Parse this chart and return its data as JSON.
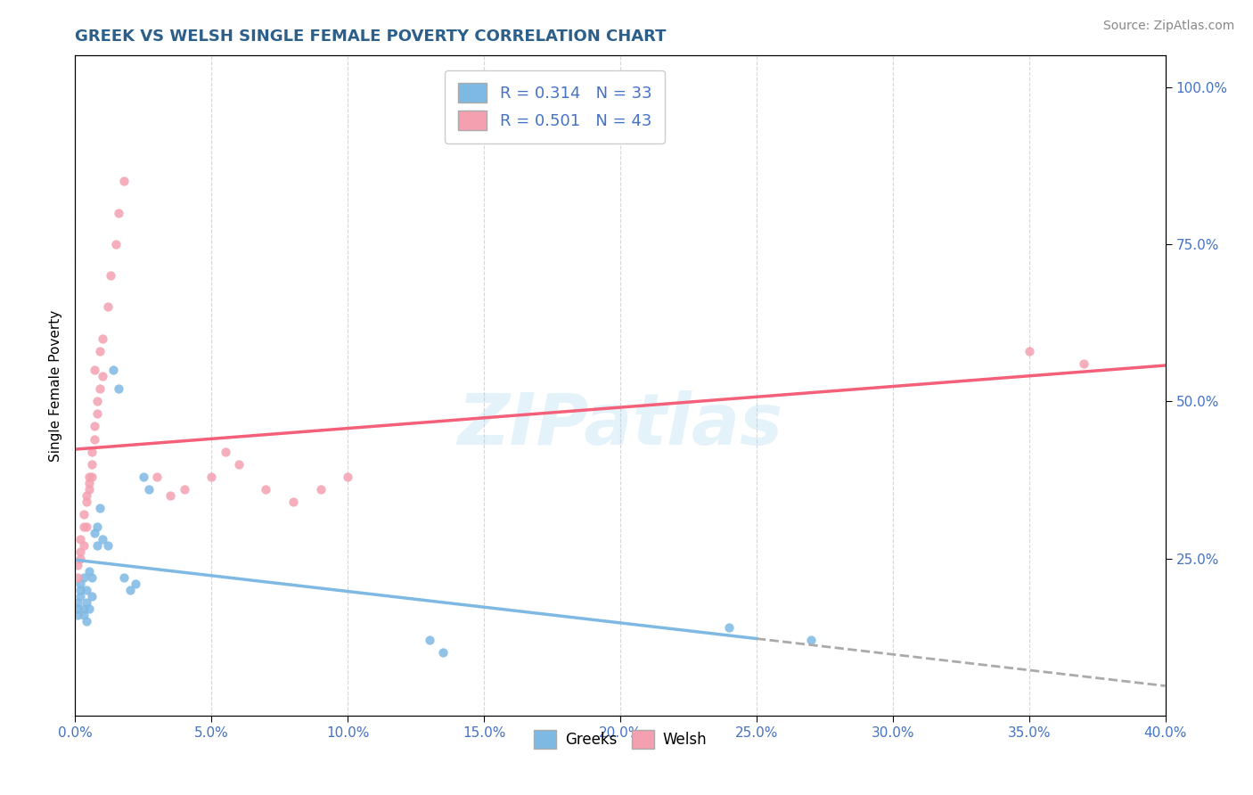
{
  "title": "GREEK VS WELSH SINGLE FEMALE POVERTY CORRELATION CHART",
  "source": "Source: ZipAtlas.com",
  "ylabel": "Single Female Poverty",
  "watermark": "ZIPatlas",
  "greek_color": "#7eb9e4",
  "welsh_color": "#f4a0b0",
  "greek_line_color": "#7eb9e4",
  "welsh_line_color": "#f4607a",
  "dashed_line_color": "#aaaaaa",
  "R_greek": 0.314,
  "N_greek": 33,
  "R_welsh": 0.501,
  "N_welsh": 43,
  "greek_scatter": [
    [
      0.001,
      0.17
    ],
    [
      0.001,
      0.16
    ],
    [
      0.001,
      0.18
    ],
    [
      0.002,
      0.2
    ],
    [
      0.002,
      0.19
    ],
    [
      0.002,
      0.21
    ],
    [
      0.003,
      0.17
    ],
    [
      0.003,
      0.16
    ],
    [
      0.003,
      0.22
    ],
    [
      0.004,
      0.18
    ],
    [
      0.004,
      0.2
    ],
    [
      0.004,
      0.15
    ],
    [
      0.005,
      0.17
    ],
    [
      0.005,
      0.23
    ],
    [
      0.006,
      0.19
    ],
    [
      0.006,
      0.22
    ],
    [
      0.007,
      0.29
    ],
    [
      0.008,
      0.3
    ],
    [
      0.008,
      0.27
    ],
    [
      0.009,
      0.33
    ],
    [
      0.01,
      0.28
    ],
    [
      0.012,
      0.27
    ],
    [
      0.014,
      0.55
    ],
    [
      0.016,
      0.52
    ],
    [
      0.018,
      0.22
    ],
    [
      0.02,
      0.2
    ],
    [
      0.022,
      0.21
    ],
    [
      0.025,
      0.38
    ],
    [
      0.027,
      0.36
    ],
    [
      0.13,
      0.12
    ],
    [
      0.135,
      0.1
    ],
    [
      0.24,
      0.14
    ],
    [
      0.27,
      0.12
    ]
  ],
  "welsh_scatter": [
    [
      0.001,
      0.22
    ],
    [
      0.001,
      0.24
    ],
    [
      0.002,
      0.26
    ],
    [
      0.002,
      0.28
    ],
    [
      0.002,
      0.25
    ],
    [
      0.003,
      0.3
    ],
    [
      0.003,
      0.32
    ],
    [
      0.003,
      0.27
    ],
    [
      0.004,
      0.34
    ],
    [
      0.004,
      0.35
    ],
    [
      0.004,
      0.3
    ],
    [
      0.005,
      0.37
    ],
    [
      0.005,
      0.38
    ],
    [
      0.005,
      0.36
    ],
    [
      0.006,
      0.4
    ],
    [
      0.006,
      0.42
    ],
    [
      0.006,
      0.38
    ],
    [
      0.007,
      0.44
    ],
    [
      0.007,
      0.46
    ],
    [
      0.007,
      0.55
    ],
    [
      0.008,
      0.48
    ],
    [
      0.008,
      0.5
    ],
    [
      0.009,
      0.52
    ],
    [
      0.009,
      0.58
    ],
    [
      0.01,
      0.6
    ],
    [
      0.01,
      0.54
    ],
    [
      0.012,
      0.65
    ],
    [
      0.013,
      0.7
    ],
    [
      0.015,
      0.75
    ],
    [
      0.016,
      0.8
    ],
    [
      0.018,
      0.85
    ],
    [
      0.03,
      0.38
    ],
    [
      0.035,
      0.35
    ],
    [
      0.04,
      0.36
    ],
    [
      0.05,
      0.38
    ],
    [
      0.055,
      0.42
    ],
    [
      0.06,
      0.4
    ],
    [
      0.07,
      0.36
    ],
    [
      0.08,
      0.34
    ],
    [
      0.09,
      0.36
    ],
    [
      0.1,
      0.38
    ],
    [
      0.35,
      0.58
    ],
    [
      0.37,
      0.56
    ]
  ],
  "greek_line_solid": [
    0.0,
    0.25
  ],
  "greek_line_dashed": [
    0.25,
    0.4
  ],
  "welsh_line": [
    0.0,
    0.4
  ],
  "xmin": 0.0,
  "xmax": 0.4,
  "ymin": 0.0,
  "ymax": 1.05,
  "right_ytick_vals": [
    0.25,
    0.5,
    0.75,
    1.0
  ],
  "background_color": "#ffffff",
  "grid_color": "#cccccc",
  "title_color": "#2c5f8a",
  "axis_label_color": "#4472c4",
  "legend_text_color": "#4472c4"
}
